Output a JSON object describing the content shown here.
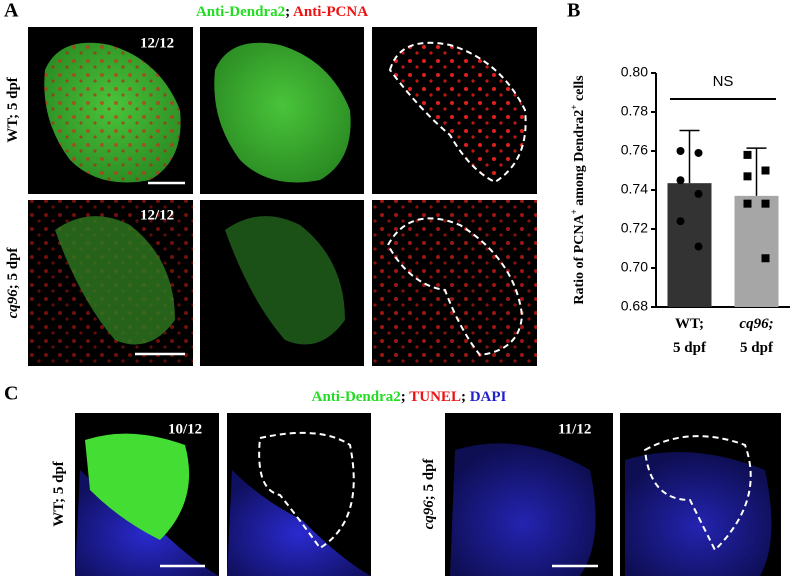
{
  "panel_labels": [
    "A",
    "B",
    "C"
  ],
  "panel_a": {
    "title_parts": [
      "Anti-Dendra2",
      "; ",
      "Anti-PCNA"
    ],
    "rows": [
      {
        "genotype": "WT",
        "stage": "; 5 dpf",
        "count": "12/12"
      },
      {
        "genotype": "cq96",
        "stage": "; 5 dpf",
        "count": "12/12"
      }
    ]
  },
  "panel_c": {
    "title_parts": [
      "Anti-Dendra2",
      "; ",
      "TUNEL",
      "; ",
      "DAPI"
    ],
    "groups": [
      {
        "genotype": "WT",
        "stage": "; 5 dpf",
        "count": "10/12"
      },
      {
        "genotype": "cq96",
        "stage": "; 5 dpf",
        "count": "11/12"
      }
    ]
  },
  "chart_data": {
    "type": "bar",
    "ylabel_parts": [
      "Ratio of PCNA",
      "+",
      " among Dendra2",
      "+",
      " cells"
    ],
    "annotation": "NS",
    "categories": [
      "WT; 5 dpf",
      "cq96; 5 dpf"
    ],
    "values": [
      0.7435,
      0.737
    ],
    "errors": [
      0.027,
      0.0245
    ],
    "points": [
      [
        0.76,
        0.759,
        0.745,
        0.738,
        0.724,
        0.711
      ],
      [
        0.758,
        0.75,
        0.747,
        0.733,
        0.733,
        0.705
      ]
    ],
    "colors": [
      "#333333",
      "#a6a6a6"
    ],
    "ylim": [
      0.68,
      0.8
    ],
    "yticks": [
      0.68,
      {
        "value": 0.7,
        "label": "0.70"
      },
      0.72,
      0.74,
      0.76,
      0.78,
      {
        "value": 0.8,
        "label": "0.80"
      }
    ]
  }
}
